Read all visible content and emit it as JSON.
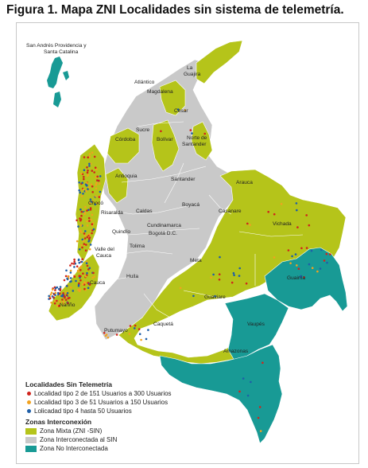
{
  "title": "Figura 1. Mapa ZNI Localidades sin sistema de telemetría.",
  "island_label": "San Andrés Providencia y Santa Catalina",
  "island_label_lines": [
    "San Andrés Providencia y",
    "Santa Catalina"
  ],
  "departments": [
    "La Guajira",
    "Atlántico",
    "Magdalena",
    "Cesar",
    "Sucre",
    "Córdoba",
    "Bolívar",
    "Norte de Santander",
    "Antioquia",
    "Santander",
    "Arauca",
    "Chocó",
    "Boyacá",
    "Casanare",
    "Risaralda",
    "Caldas",
    "Cundinamarca",
    "Bogotá D.C.",
    "Vichada",
    "Quindío",
    "Tolima",
    "Valle del Cauca",
    "Meta",
    "Guainía",
    "Cauca",
    "Huila",
    "Guaviare",
    "Nariño",
    "Vaupés",
    "Caquetá",
    "Putumayo",
    "Amazonas"
  ],
  "legend": {
    "localities_heading": "Localidades Sin Telemetría",
    "localities": [
      {
        "label": "Localidad tipo 2 de 151 Usuarios a 300 Usuarios",
        "color": "#d0241c"
      },
      {
        "label": "Localidad tipo 3 de 51 Usuarios a 150 Usuarios",
        "color": "#f2a21f"
      },
      {
        "label": "Lolicadad tipo 4 hasta 50 Usuarios",
        "color": "#1f5fa8"
      }
    ],
    "zones_heading": "Zonas Interconexión",
    "zones": [
      {
        "label": "Zona Mixta (ZNI -SIN)",
        "color": "#b5c41a"
      },
      {
        "label": "Zona Interconectada al SIN",
        "color": "#c9c9c9"
      },
      {
        "label": "Zona No Interconectada",
        "color": "#189a95"
      }
    ]
  },
  "colors": {
    "mixed": "#b5c41a",
    "interconnected": "#c9c9c9",
    "non_interconnected": "#189a95",
    "border": "#ffffff"
  }
}
